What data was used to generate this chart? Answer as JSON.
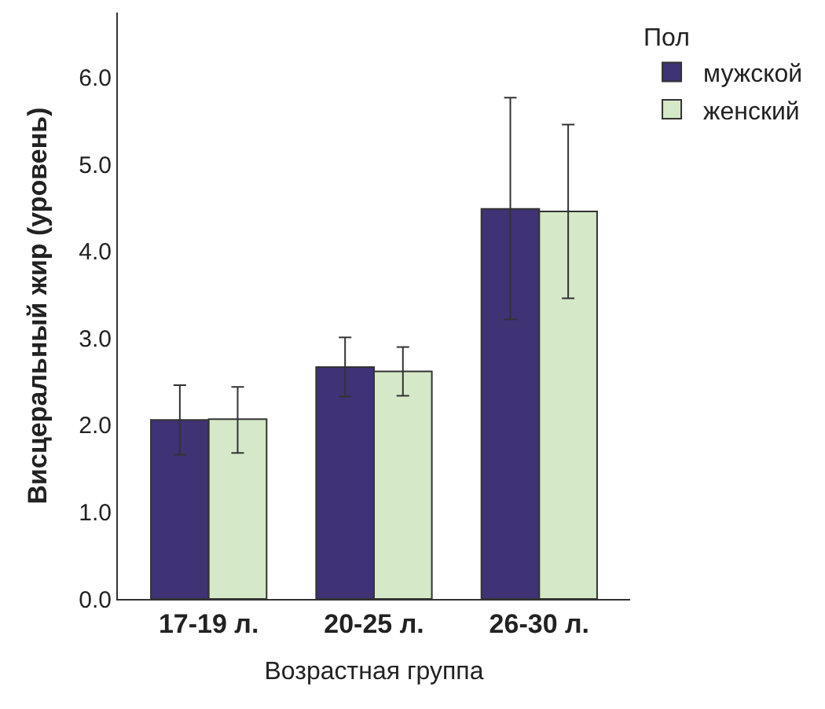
{
  "chart_data": {
    "type": "bar",
    "xlabel": "Возрастная группа",
    "ylabel": "Висцеральный жир (уровень)",
    "legend_title": "Пол",
    "categories": [
      "17-19 л.",
      "20-25 л.",
      "26-30 л."
    ],
    "series": [
      {
        "name": "мужской",
        "color": "#3f3275",
        "values": [
          2.06,
          2.67,
          4.49
        ],
        "errors": [
          [
            1.66,
            2.46
          ],
          [
            2.33,
            3.01
          ],
          [
            3.22,
            5.77
          ]
        ]
      },
      {
        "name": "женский",
        "color": "#d5e8c8",
        "values": [
          2.07,
          2.62,
          4.46
        ],
        "errors": [
          [
            1.68,
            2.44
          ],
          [
            2.34,
            2.9
          ],
          [
            3.46,
            5.46
          ]
        ]
      }
    ],
    "ylim": [
      0,
      6.75
    ],
    "yticks": [
      {
        "value": 0,
        "label": "0.0"
      },
      {
        "value": 1,
        "label": "1.0"
      },
      {
        "value": 2,
        "label": "2.0"
      },
      {
        "value": 3,
        "label": "3.0"
      },
      {
        "value": 4,
        "label": "4.0"
      },
      {
        "value": 5,
        "label": "5.0"
      },
      {
        "value": 6,
        "label": "6.0"
      }
    ],
    "legend": "top right"
  }
}
